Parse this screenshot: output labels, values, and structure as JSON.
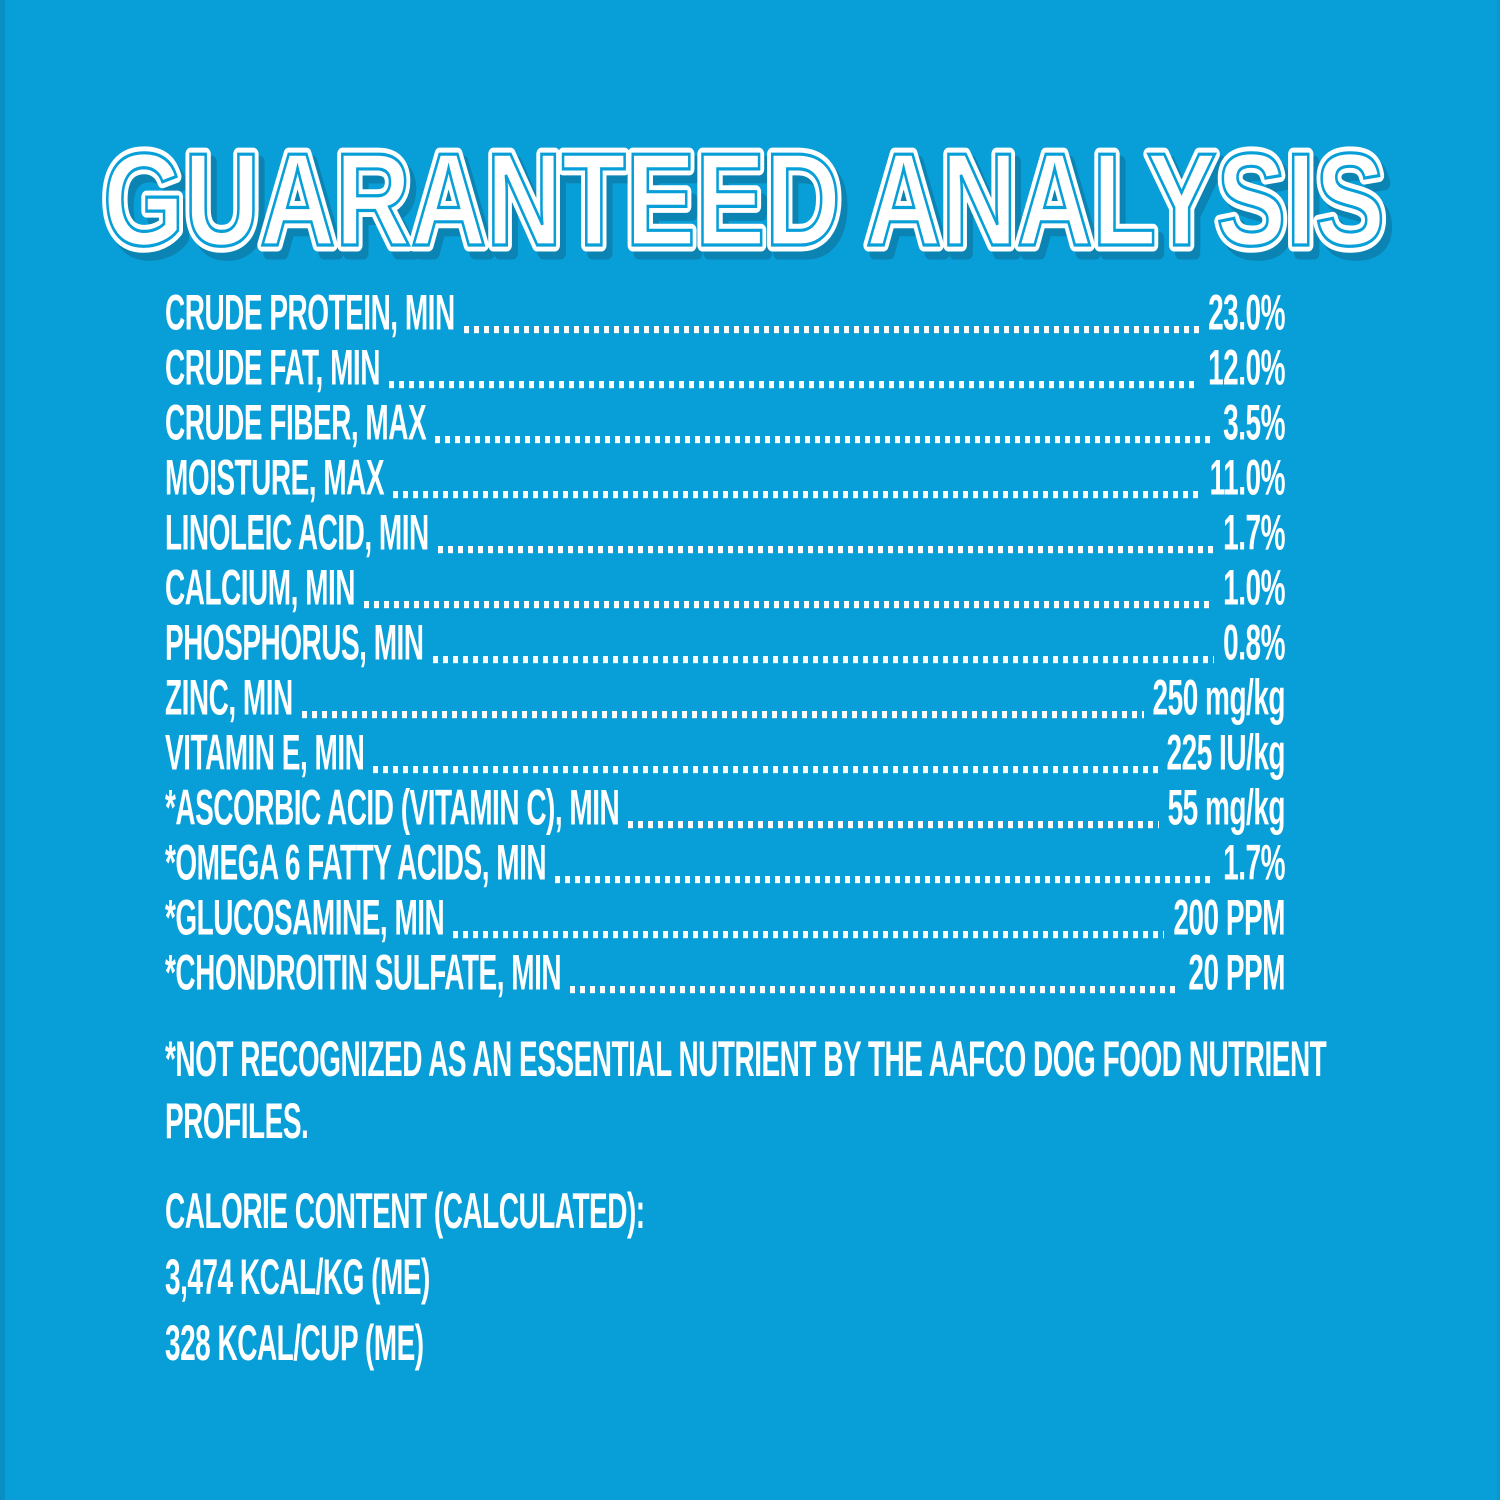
{
  "page": {
    "background_color": "#089fd9",
    "edge_shade_color": "#0a8fc4",
    "text_color": "#ffffff",
    "title_shadow_color": "#0b84b3"
  },
  "title": {
    "text": "GUARANTEED ANALYSIS"
  },
  "analysis": {
    "rows": [
      {
        "label": "CRUDE PROTEIN, MIN",
        "value": "23.0%"
      },
      {
        "label": "CRUDE FAT, MIN",
        "value": "12.0%"
      },
      {
        "label": "CRUDE FIBER, MAX",
        "value": "3.5%"
      },
      {
        "label": "MOISTURE, MAX",
        "value": "11.0%"
      },
      {
        "label": "LINOLEIC ACID, MIN",
        "value": "1.7%"
      },
      {
        "label": "CALCIUM, MIN",
        "value": "1.0%"
      },
      {
        "label": "PHOSPHORUS, MIN",
        "value": "0.8%"
      },
      {
        "label": "ZINC, MIN",
        "value": "250 mg/kg"
      },
      {
        "label": "VITAMIN E, MIN",
        "value": "225 IU/kg"
      },
      {
        "label": "*ASCORBIC ACID (VITAMIN C), MIN",
        "value": "55 mg/kg"
      },
      {
        "label": "*OMEGA 6 FATTY ACIDS, MIN",
        "value": "1.7%"
      },
      {
        "label": "*GLUCOSAMINE, MIN",
        "value": "200 PPM"
      },
      {
        "label": "*CHONDROITIN SULFATE, MIN",
        "value": "20 PPM"
      }
    ]
  },
  "footnote": {
    "lines": [
      "*NOT RECOGNIZED AS AN ESSENTIAL NUTRIENT BY THE AAFCO DOG FOOD NUTRIENT",
      "PROFILES."
    ]
  },
  "calories": {
    "lines": [
      "CALORIE CONTENT (CALCULATED):",
      "3,474 KCAL/KG (ME)",
      "328 KCAL/CUP (ME)"
    ]
  }
}
